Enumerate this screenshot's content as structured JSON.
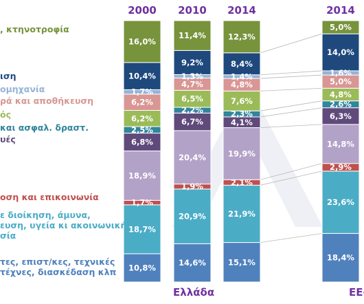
{
  "chart_data": {
    "type": "bar",
    "stacked": true,
    "categories": [
      "2000",
      "2010",
      "2014",
      "2014"
    ],
    "groups": [
      "Ελλάδα",
      "ΕΕ-"
    ],
    "series": [
      {
        "name": "τες, επιστ/κες, τεχνικές\nτέχνες, διασκέδαση κλπ",
        "color": "#4f81bd",
        "values": [
          10.8,
          14.6,
          15.1,
          18.4
        ]
      },
      {
        "name": "ε διοίκηση, άμυνα,\nευση, υγεία κι ακοινωνική\nσία",
        "color": "#4bacc6",
        "values": [
          18.7,
          20.9,
          21.9,
          23.6
        ]
      },
      {
        "name": "οση και επικοινωνία",
        "color": "#c0504d",
        "values": [
          1.7,
          1.9,
          2.1,
          2.9
        ]
      },
      {
        "name": "",
        "color": "#b3a2c7",
        "values": [
          18.9,
          20.4,
          19.9,
          14.8
        ]
      },
      {
        "name": "υές",
        "color": "#604a7b",
        "values": [
          6.8,
          6.7,
          4.1,
          6.3
        ]
      },
      {
        "name": "και ασφαλ. δραστ.",
        "color": "#31859c",
        "values": [
          2.5,
          2.2,
          2.3,
          2.6
        ]
      },
      {
        "name": "ός",
        "color": "#9bbb59",
        "values": [
          6.2,
          6.5,
          7.6,
          4.8
        ]
      },
      {
        "name": "ρά και αποθήκευση",
        "color": "#d99694",
        "values": [
          6.2,
          4.7,
          4.8,
          5.0
        ]
      },
      {
        "name": "ομηχανία",
        "color": "#95b3d7",
        "values": [
          1.7,
          1.3,
          1.4,
          1.6
        ]
      },
      {
        "name": "ιση",
        "color": "#1f497d",
        "values": [
          10.4,
          9.2,
          8.4,
          14.0
        ]
      },
      {
        "name": ", κτηνοτροφία",
        "color": "#77933c",
        "values": [
          16.0,
          11.4,
          12.3,
          5.0
        ]
      }
    ],
    "labels": [
      [
        "10,8%",
        "18,7%",
        "1,7%",
        "18,9%",
        "6,8%",
        "2,5%",
        "6,2%",
        "6,2%",
        "1,7%",
        "10,4%",
        "16,0%"
      ],
      [
        "14,6%",
        "20,9%",
        "1,9%",
        "20,4%",
        "6,7%",
        "2,2%",
        "6,5%",
        "4,7%",
        "1,3%",
        "9,2%",
        "11,4%"
      ],
      [
        "15,1%",
        "21,9%",
        "2,1%",
        "19,9%",
        "4,1%",
        "2,3%",
        "7,6%",
        "4,8%",
        "1,4%",
        "8,4%",
        "12,3%"
      ],
      [
        "18,4%",
        "23,6%",
        "2,9%",
        "14,8%",
        "6,3%",
        "2,6%",
        "4,8%",
        "5,0%",
        "1,6%",
        "14,0%",
        "5,0%"
      ]
    ],
    "legend": "left",
    "grid": false
  }
}
